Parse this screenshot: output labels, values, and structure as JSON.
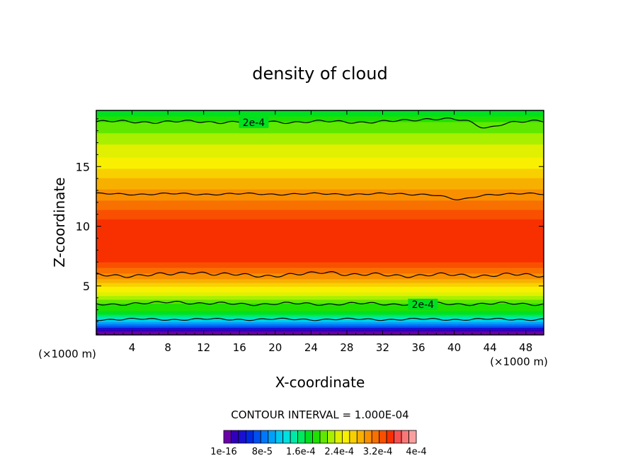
{
  "chart_data": {
    "type": "heatmap",
    "title": "density of cloud",
    "xlabel": "X-coordinate",
    "ylabel": "Z-coordinate",
    "x_unit_left": "(×1000 m)",
    "x_unit_right": "(×1000 m)",
    "xlim": [
      0,
      50
    ],
    "ylim": [
      0.9,
      19.7
    ],
    "x_ticks": [
      4,
      8,
      12,
      16,
      20,
      24,
      28,
      32,
      36,
      40,
      44,
      48
    ],
    "y_ticks": [
      5,
      10,
      15
    ],
    "contour_interval_text": "CONTOUR INTERVAL = 1.000E-04",
    "contour_labels": [
      {
        "text": "2e-4",
        "x": 17.6,
        "z": 18.7
      },
      {
        "text": "2e-4",
        "x": 36.5,
        "z": 3.45
      }
    ],
    "colorbar": {
      "colors": [
        "#6a00a8",
        "#3000b8",
        "#1a10d0",
        "#0028e0",
        "#0050f0",
        "#0078f8",
        "#00a0f8",
        "#00c8f0",
        "#00e0e0",
        "#00e8a8",
        "#00e860",
        "#00e020",
        "#20e000",
        "#60e800",
        "#a8f000",
        "#e0f000",
        "#f8f000",
        "#f8d000",
        "#f8b000",
        "#f89000",
        "#f87000",
        "#f85000",
        "#f83000",
        "#f85050",
        "#f87878",
        "#f8a0a0"
      ],
      "labels": [
        "1e-16",
        "8e-5",
        "1.6e-4",
        "2.4e-4",
        "3.2e-4",
        "4e-4"
      ]
    },
    "profile": [
      {
        "z": 1.0,
        "value": 0.0
      },
      {
        "z": 1.5,
        "value": 5e-05
      },
      {
        "z": 2.0,
        "value": 0.00011
      },
      {
        "z": 2.5,
        "value": 0.00016
      },
      {
        "z": 3.0,
        "value": 0.00019
      },
      {
        "z": 3.5,
        "value": 0.0002
      },
      {
        "z": 5.8,
        "value": 0.0003
      },
      {
        "z": 7.0,
        "value": 0.00034
      },
      {
        "z": 10.0,
        "value": 0.00035
      },
      {
        "z": 12.6,
        "value": 0.0003
      },
      {
        "z": 15.0,
        "value": 0.00026
      },
      {
        "z": 18.7,
        "value": 0.0002
      },
      {
        "z": 19.7,
        "value": 0.00017
      }
    ],
    "grid": false
  }
}
